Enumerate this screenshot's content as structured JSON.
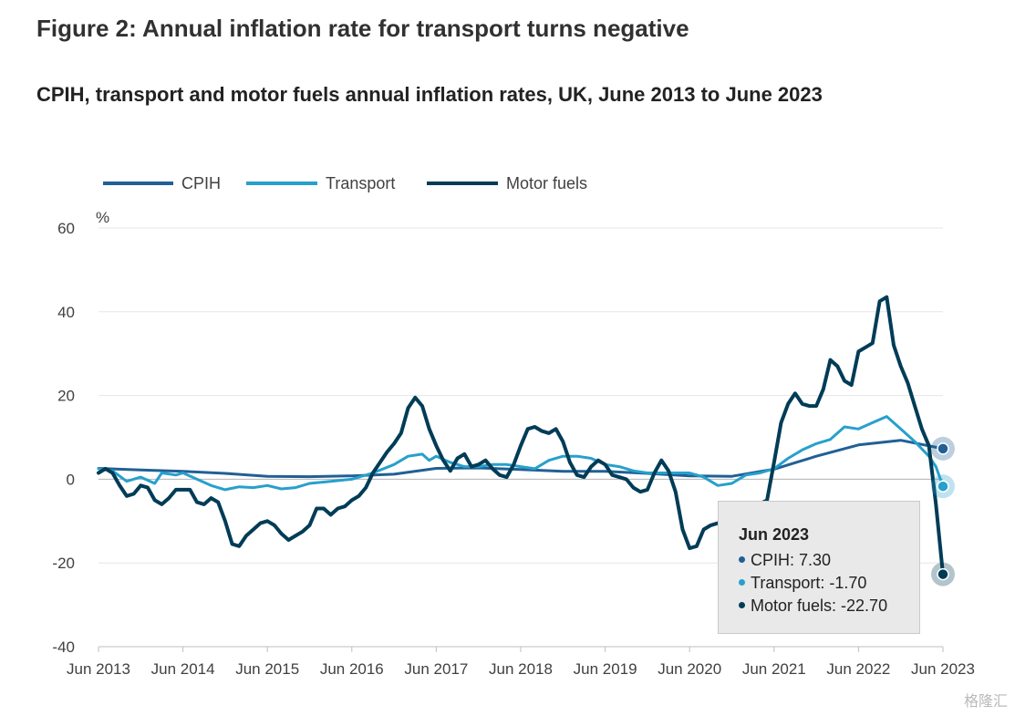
{
  "figure_title": "Figure 2: Annual inflation rate for transport turns negative",
  "chart_title": "CPIH, transport and motor fuels annual inflation rates, UK, June 2013 to June 2023",
  "watermark": "格隆汇",
  "colors": {
    "cpih": "#206095",
    "transport": "#27a0cc",
    "motor_fuels": "#003c57",
    "grid": "#e6e6e6",
    "axis": "#bfbfbf"
  },
  "tooltip": {
    "title": "Jun 2023",
    "rows": [
      {
        "label": "CPIH: 7.30",
        "color": "#206095"
      },
      {
        "label": "Transport: -1.70",
        "color": "#27a0cc"
      },
      {
        "label": "Motor fuels: -22.70",
        "color": "#003c57"
      }
    ]
  },
  "chart_data": {
    "type": "line",
    "title": "CPIH, transport and motor fuels annual inflation rates, UK, June 2013 to June 2023",
    "xlabel": "",
    "ylabel": "%",
    "ylim": [
      -40,
      60
    ],
    "yticks": [
      60,
      40,
      20,
      0,
      -20,
      -40
    ],
    "grid": true,
    "legend": "top-left",
    "xticks": [
      "Jun 2013",
      "Jun 2014",
      "Jun 2015",
      "Jun 2016",
      "Jun 2017",
      "Jun 2018",
      "Jun 2019",
      "Jun 2020",
      "Jun 2021",
      "Jun 2022",
      "Jun 2023"
    ],
    "series": [
      {
        "name": "CPIH",
        "key": "cpih",
        "points": [
          [
            0,
            2.6
          ],
          [
            6,
            2.2
          ],
          [
            12,
            1.9
          ],
          [
            18,
            1.4
          ],
          [
            24,
            0.7
          ],
          [
            30,
            0.6
          ],
          [
            36,
            0.8
          ],
          [
            42,
            1.2
          ],
          [
            48,
            2.6
          ],
          [
            54,
            2.7
          ],
          [
            60,
            2.3
          ],
          [
            66,
            1.9
          ],
          [
            72,
            1.9
          ],
          [
            78,
            1.4
          ],
          [
            84,
            0.8
          ],
          [
            90,
            0.7
          ],
          [
            96,
            2.4
          ],
          [
            102,
            5.5
          ],
          [
            108,
            8.2
          ],
          [
            114,
            9.3
          ],
          [
            120,
            7.3
          ]
        ]
      },
      {
        "name": "Transport",
        "key": "transport",
        "points": [
          [
            0,
            2.5
          ],
          [
            2,
            2.0
          ],
          [
            4,
            -0.5
          ],
          [
            6,
            0.5
          ],
          [
            8,
            -1.0
          ],
          [
            9,
            1.5
          ],
          [
            11,
            1.0
          ],
          [
            12,
            1.5
          ],
          [
            14,
            0.0
          ],
          [
            16,
            -1.5
          ],
          [
            18,
            -2.5
          ],
          [
            20,
            -1.8
          ],
          [
            22,
            -2.0
          ],
          [
            24,
            -1.5
          ],
          [
            26,
            -2.3
          ],
          [
            28,
            -2.0
          ],
          [
            30,
            -1.0
          ],
          [
            33,
            -0.5
          ],
          [
            36,
            0.0
          ],
          [
            39,
            1.5
          ],
          [
            42,
            3.5
          ],
          [
            44,
            5.5
          ],
          [
            46,
            6.0
          ],
          [
            47,
            4.5
          ],
          [
            48,
            5.5
          ],
          [
            50,
            4.0
          ],
          [
            52,
            3.0
          ],
          [
            54,
            3.0
          ],
          [
            56,
            3.5
          ],
          [
            58,
            3.5
          ],
          [
            60,
            3.0
          ],
          [
            62,
            2.5
          ],
          [
            64,
            4.5
          ],
          [
            66,
            5.5
          ],
          [
            68,
            5.5
          ],
          [
            70,
            5.0
          ],
          [
            72,
            3.5
          ],
          [
            74,
            3.0
          ],
          [
            76,
            2.0
          ],
          [
            78,
            1.5
          ],
          [
            80,
            1.5
          ],
          [
            82,
            1.5
          ],
          [
            84,
            1.5
          ],
          [
            86,
            0.5
          ],
          [
            88,
            -1.5
          ],
          [
            90,
            -1.0
          ],
          [
            92,
            1.0
          ],
          [
            94,
            1.5
          ],
          [
            96,
            2.5
          ],
          [
            98,
            5.0
          ],
          [
            100,
            7.0
          ],
          [
            102,
            8.5
          ],
          [
            104,
            9.5
          ],
          [
            106,
            12.5
          ],
          [
            108,
            12.0
          ],
          [
            110,
            13.5
          ],
          [
            112,
            15.0
          ],
          [
            114,
            12.0
          ],
          [
            116,
            9.0
          ],
          [
            118,
            5.5
          ],
          [
            119,
            3.0
          ],
          [
            120,
            -1.7
          ]
        ]
      },
      {
        "name": "Motor fuels",
        "key": "motor_fuels",
        "points": [
          [
            0,
            1.5
          ],
          [
            1,
            2.5
          ],
          [
            2,
            1.5
          ],
          [
            3,
            -1.5
          ],
          [
            4,
            -4.0
          ],
          [
            5,
            -3.5
          ],
          [
            6,
            -1.5
          ],
          [
            7,
            -2.0
          ],
          [
            8,
            -5.0
          ],
          [
            9,
            -6.0
          ],
          [
            10,
            -4.5
          ],
          [
            11,
            -2.5
          ],
          [
            12,
            -2.5
          ],
          [
            13,
            -2.5
          ],
          [
            14,
            -5.5
          ],
          [
            15,
            -6.0
          ],
          [
            16,
            -4.5
          ],
          [
            17,
            -5.5
          ],
          [
            18,
            -10.0
          ],
          [
            19,
            -15.5
          ],
          [
            20,
            -16.0
          ],
          [
            21,
            -13.5
          ],
          [
            22,
            -12.0
          ],
          [
            23,
            -10.5
          ],
          [
            24,
            -10.0
          ],
          [
            25,
            -11.0
          ],
          [
            26,
            -13.0
          ],
          [
            27,
            -14.5
          ],
          [
            28,
            -13.5
          ],
          [
            29,
            -12.5
          ],
          [
            30,
            -11.0
          ],
          [
            31,
            -7.0
          ],
          [
            32,
            -7.0
          ],
          [
            33,
            -8.5
          ],
          [
            34,
            -7.0
          ],
          [
            35,
            -6.5
          ],
          [
            36,
            -5.0
          ],
          [
            37,
            -4.0
          ],
          [
            38,
            -2.0
          ],
          [
            39,
            1.5
          ],
          [
            40,
            4.0
          ],
          [
            41,
            6.5
          ],
          [
            42,
            8.5
          ],
          [
            43,
            11.0
          ],
          [
            44,
            17.0
          ],
          [
            45,
            19.5
          ],
          [
            46,
            17.5
          ],
          [
            47,
            12.0
          ],
          [
            48,
            8.0
          ],
          [
            49,
            4.5
          ],
          [
            50,
            2.0
          ],
          [
            51,
            5.0
          ],
          [
            52,
            6.0
          ],
          [
            53,
            3.0
          ],
          [
            54,
            3.5
          ],
          [
            55,
            4.5
          ],
          [
            56,
            2.5
          ],
          [
            57,
            1.0
          ],
          [
            58,
            0.5
          ],
          [
            59,
            3.5
          ],
          [
            60,
            8.0
          ],
          [
            61,
            12.0
          ],
          [
            62,
            12.5
          ],
          [
            63,
            11.5
          ],
          [
            64,
            11.0
          ],
          [
            65,
            12.0
          ],
          [
            66,
            9.0
          ],
          [
            67,
            4.0
          ],
          [
            68,
            1.0
          ],
          [
            69,
            0.5
          ],
          [
            70,
            3.0
          ],
          [
            71,
            4.5
          ],
          [
            72,
            3.5
          ],
          [
            73,
            1.0
          ],
          [
            74,
            0.5
          ],
          [
            75,
            0.0
          ],
          [
            76,
            -2.0
          ],
          [
            77,
            -3.0
          ],
          [
            78,
            -2.5
          ],
          [
            79,
            1.5
          ],
          [
            80,
            4.5
          ],
          [
            81,
            2.0
          ],
          [
            82,
            -3.0
          ],
          [
            83,
            -12.0
          ],
          [
            84,
            -16.5
          ],
          [
            85,
            -16.0
          ],
          [
            86,
            -12.0
          ],
          [
            87,
            -11.0
          ],
          [
            88,
            -10.5
          ],
          [
            89,
            -10.0
          ],
          [
            95,
            -5.0
          ],
          [
            96,
            4.0
          ],
          [
            97,
            13.5
          ],
          [
            98,
            18.0
          ],
          [
            99,
            20.5
          ],
          [
            100,
            18.0
          ],
          [
            101,
            17.5
          ],
          [
            102,
            17.5
          ],
          [
            103,
            21.5
          ],
          [
            104,
            28.5
          ],
          [
            105,
            27.0
          ],
          [
            106,
            23.5
          ],
          [
            107,
            22.5
          ],
          [
            108,
            30.5
          ],
          [
            109,
            31.5
          ],
          [
            110,
            32.5
          ],
          [
            111,
            42.5
          ],
          [
            112,
            43.5
          ],
          [
            113,
            32.0
          ],
          [
            114,
            27.0
          ],
          [
            115,
            23.0
          ],
          [
            116,
            17.5
          ],
          [
            117,
            12.0
          ],
          [
            118,
            8.0
          ],
          [
            119,
            -6.0
          ],
          [
            120,
            -22.7
          ]
        ]
      }
    ]
  }
}
